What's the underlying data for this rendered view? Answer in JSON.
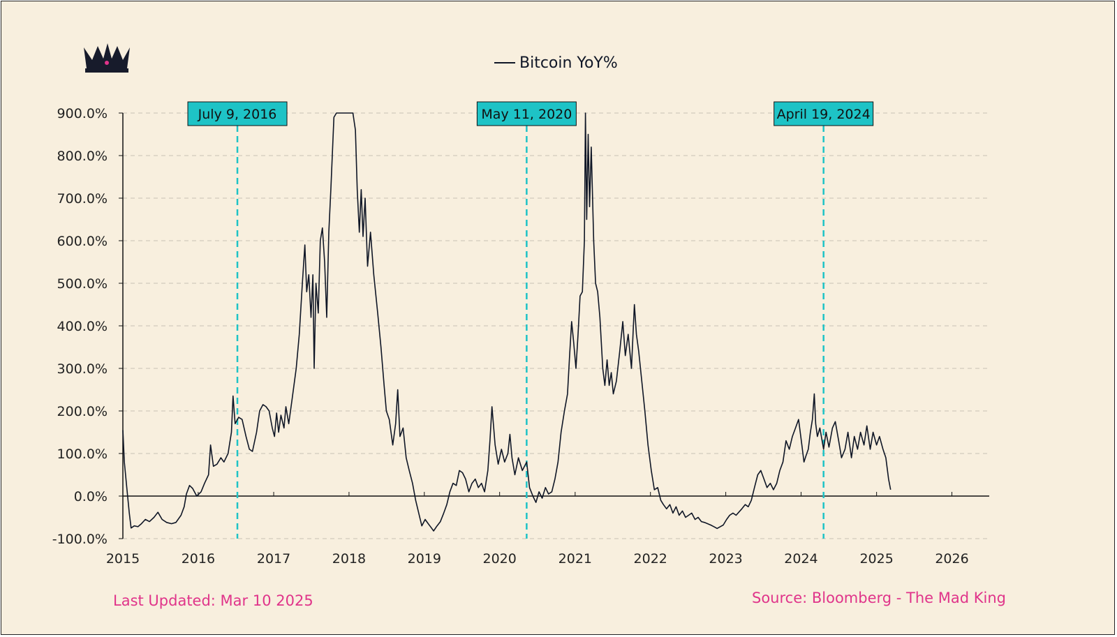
{
  "colors": {
    "background": "#f8efde",
    "line": "#0f1626",
    "marker": "#1ec3c6",
    "marker_label_bg": "#1ec3c6",
    "footer_text": "#e0348a",
    "grid": "#c9c2b4",
    "logo": "#171b2b",
    "logo_gem": "#e0348a"
  },
  "logo": {
    "icon": "crown-icon"
  },
  "footer": {
    "last_updated": "Last Updated: Mar 10 2025",
    "source": "Source: Bloomberg - The Mad King"
  },
  "chart_data": {
    "type": "line",
    "title": "",
    "xlabel": "",
    "ylabel": "",
    "legend": {
      "position": "top-center",
      "entries": [
        "Bitcoin YoY%"
      ]
    },
    "grid": {
      "horizontal": true,
      "style": "dashed"
    },
    "xlim": [
      "2015-01-01",
      "2026-07-01"
    ],
    "ylim": [
      -100,
      900
    ],
    "x_ticks": [
      "2015",
      "2016",
      "2017",
      "2018",
      "2019",
      "2020",
      "2021",
      "2022",
      "2023",
      "2024",
      "2025",
      "2026"
    ],
    "y_ticks": [
      "-100.0%",
      "0.0%",
      "100.0%",
      "200.0%",
      "300.0%",
      "400.0%",
      "500.0%",
      "600.0%",
      "700.0%",
      "800.0%",
      "900.0%"
    ],
    "y_tick_values": [
      -100,
      0,
      100,
      200,
      300,
      400,
      500,
      600,
      700,
      800,
      900
    ],
    "markers": [
      {
        "date": "2016-07-09",
        "label": "July 9, 2016"
      },
      {
        "date": "2020-05-11",
        "label": "May 11, 2020"
      },
      {
        "date": "2024-04-19",
        "label": "April 19, 2024"
      }
    ],
    "series": [
      {
        "name": "Bitcoin YoY%",
        "points": [
          [
            "2015-01-01",
            155
          ],
          [
            "2015-01-08",
            80
          ],
          [
            "2015-01-20",
            20
          ],
          [
            "2015-02-01",
            -40
          ],
          [
            "2015-02-10",
            -75
          ],
          [
            "2015-02-25",
            -70
          ],
          [
            "2015-03-15",
            -72
          ],
          [
            "2015-04-01",
            -65
          ],
          [
            "2015-04-20",
            -55
          ],
          [
            "2015-05-10",
            -60
          ],
          [
            "2015-06-01",
            -50
          ],
          [
            "2015-06-20",
            -38
          ],
          [
            "2015-07-10",
            -55
          ],
          [
            "2015-08-01",
            -62
          ],
          [
            "2015-08-25",
            -65
          ],
          [
            "2015-09-15",
            -62
          ],
          [
            "2015-10-10",
            -45
          ],
          [
            "2015-10-25",
            -25
          ],
          [
            "2015-11-05",
            5
          ],
          [
            "2015-11-20",
            25
          ],
          [
            "2015-12-05",
            18
          ],
          [
            "2015-12-25",
            0
          ],
          [
            "2016-01-15",
            10
          ],
          [
            "2016-02-01",
            30
          ],
          [
            "2016-02-20",
            50
          ],
          [
            "2016-03-01",
            120
          ],
          [
            "2016-03-15",
            70
          ],
          [
            "2016-04-01",
            75
          ],
          [
            "2016-04-20",
            90
          ],
          [
            "2016-05-05",
            80
          ],
          [
            "2016-05-25",
            100
          ],
          [
            "2016-06-10",
            150
          ],
          [
            "2016-06-18",
            235
          ],
          [
            "2016-06-28",
            170
          ],
          [
            "2016-07-15",
            185
          ],
          [
            "2016-08-01",
            180
          ],
          [
            "2016-08-20",
            140
          ],
          [
            "2016-09-05",
            110
          ],
          [
            "2016-09-20",
            105
          ],
          [
            "2016-10-10",
            150
          ],
          [
            "2016-10-25",
            200
          ],
          [
            "2016-11-10",
            215
          ],
          [
            "2016-11-25",
            210
          ],
          [
            "2016-12-10",
            200
          ],
          [
            "2016-12-25",
            160
          ],
          [
            "2017-01-05",
            140
          ],
          [
            "2017-01-15",
            195
          ],
          [
            "2017-01-25",
            150
          ],
          [
            "2017-02-05",
            190
          ],
          [
            "2017-02-20",
            160
          ],
          [
            "2017-03-01",
            210
          ],
          [
            "2017-03-15",
            170
          ],
          [
            "2017-04-01",
            230
          ],
          [
            "2017-04-20",
            300
          ],
          [
            "2017-05-05",
            380
          ],
          [
            "2017-05-20",
            500
          ],
          [
            "2017-06-01",
            590
          ],
          [
            "2017-06-10",
            480
          ],
          [
            "2017-06-20",
            520
          ],
          [
            "2017-07-01",
            420
          ],
          [
            "2017-07-10",
            520
          ],
          [
            "2017-07-16",
            300
          ],
          [
            "2017-07-25",
            500
          ],
          [
            "2017-08-05",
            430
          ],
          [
            "2017-08-15",
            600
          ],
          [
            "2017-08-25",
            630
          ],
          [
            "2017-09-05",
            550
          ],
          [
            "2017-09-15",
            420
          ],
          [
            "2017-09-25",
            620
          ],
          [
            "2017-10-05",
            720
          ],
          [
            "2017-10-20",
            890
          ],
          [
            "2017-11-01",
            900
          ],
          [
            "2017-11-20",
            900
          ],
          [
            "2017-12-15",
            900
          ],
          [
            "2018-01-05",
            900
          ],
          [
            "2018-01-20",
            900
          ],
          [
            "2018-02-01",
            860
          ],
          [
            "2018-02-10",
            720
          ],
          [
            "2018-02-20",
            620
          ],
          [
            "2018-03-01",
            720
          ],
          [
            "2018-03-10",
            610
          ],
          [
            "2018-03-20",
            700
          ],
          [
            "2018-04-01",
            540
          ],
          [
            "2018-04-15",
            620
          ],
          [
            "2018-05-01",
            520
          ],
          [
            "2018-05-20",
            430
          ],
          [
            "2018-06-05",
            350
          ],
          [
            "2018-06-20",
            260
          ],
          [
            "2018-07-01",
            200
          ],
          [
            "2018-07-15",
            180
          ],
          [
            "2018-08-01",
            120
          ],
          [
            "2018-08-15",
            170
          ],
          [
            "2018-08-25",
            250
          ],
          [
            "2018-09-05",
            140
          ],
          [
            "2018-09-20",
            160
          ],
          [
            "2018-10-05",
            90
          ],
          [
            "2018-10-20",
            60
          ],
          [
            "2018-11-05",
            30
          ],
          [
            "2018-11-20",
            -10
          ],
          [
            "2018-12-05",
            -40
          ],
          [
            "2018-12-20",
            -70
          ],
          [
            "2019-01-05",
            -55
          ],
          [
            "2019-01-20",
            -65
          ],
          [
            "2019-02-05",
            -75
          ],
          [
            "2019-02-15",
            -82
          ],
          [
            "2019-03-01",
            -72
          ],
          [
            "2019-03-20",
            -60
          ],
          [
            "2019-04-05",
            -40
          ],
          [
            "2019-04-20",
            -20
          ],
          [
            "2019-05-05",
            10
          ],
          [
            "2019-05-20",
            30
          ],
          [
            "2019-06-05",
            25
          ],
          [
            "2019-06-20",
            60
          ],
          [
            "2019-07-05",
            55
          ],
          [
            "2019-07-20",
            40
          ],
          [
            "2019-08-05",
            10
          ],
          [
            "2019-08-20",
            30
          ],
          [
            "2019-09-05",
            40
          ],
          [
            "2019-09-20",
            20
          ],
          [
            "2019-10-05",
            30
          ],
          [
            "2019-10-20",
            10
          ],
          [
            "2019-11-05",
            60
          ],
          [
            "2019-11-15",
            130
          ],
          [
            "2019-11-25",
            210
          ],
          [
            "2019-12-10",
            120
          ],
          [
            "2019-12-25",
            75
          ],
          [
            "2020-01-10",
            110
          ],
          [
            "2020-01-25",
            80
          ],
          [
            "2020-02-10",
            100
          ],
          [
            "2020-02-20",
            145
          ],
          [
            "2020-03-01",
            90
          ],
          [
            "2020-03-15",
            50
          ],
          [
            "2020-04-01",
            90
          ],
          [
            "2020-04-20",
            60
          ],
          [
            "2020-05-11",
            80
          ],
          [
            "2020-05-25",
            20
          ],
          [
            "2020-06-10",
            0
          ],
          [
            "2020-06-25",
            -15
          ],
          [
            "2020-07-10",
            10
          ],
          [
            "2020-07-25",
            -5
          ],
          [
            "2020-08-10",
            20
          ],
          [
            "2020-08-25",
            5
          ],
          [
            "2020-09-10",
            10
          ],
          [
            "2020-09-25",
            40
          ],
          [
            "2020-10-10",
            80
          ],
          [
            "2020-10-25",
            150
          ],
          [
            "2020-11-10",
            200
          ],
          [
            "2020-11-25",
            240
          ],
          [
            "2020-12-05",
            330
          ],
          [
            "2020-12-15",
            410
          ],
          [
            "2020-12-25",
            360
          ],
          [
            "2021-01-05",
            300
          ],
          [
            "2021-01-15",
            380
          ],
          [
            "2021-01-25",
            470
          ],
          [
            "2021-02-05",
            480
          ],
          [
            "2021-02-15",
            600
          ],
          [
            "2021-02-20",
            900
          ],
          [
            "2021-02-26",
            650
          ],
          [
            "2021-03-05",
            850
          ],
          [
            "2021-03-12",
            680
          ],
          [
            "2021-03-20",
            820
          ],
          [
            "2021-04-01",
            600
          ],
          [
            "2021-04-10",
            500
          ],
          [
            "2021-04-20",
            480
          ],
          [
            "2021-05-01",
            420
          ],
          [
            "2021-05-15",
            300
          ],
          [
            "2021-05-25",
            260
          ],
          [
            "2021-06-05",
            320
          ],
          [
            "2021-06-15",
            260
          ],
          [
            "2021-06-25",
            290
          ],
          [
            "2021-07-05",
            240
          ],
          [
            "2021-07-20",
            270
          ],
          [
            "2021-08-05",
            340
          ],
          [
            "2021-08-20",
            410
          ],
          [
            "2021-09-01",
            330
          ],
          [
            "2021-09-15",
            380
          ],
          [
            "2021-10-01",
            300
          ],
          [
            "2021-10-15",
            450
          ],
          [
            "2021-10-25",
            380
          ],
          [
            "2021-11-05",
            340
          ],
          [
            "2021-11-20",
            270
          ],
          [
            "2021-12-05",
            200
          ],
          [
            "2021-12-20",
            120
          ],
          [
            "2022-01-05",
            60
          ],
          [
            "2022-01-20",
            15
          ],
          [
            "2022-02-05",
            20
          ],
          [
            "2022-02-20",
            -10
          ],
          [
            "2022-03-05",
            -20
          ],
          [
            "2022-03-20",
            -30
          ],
          [
            "2022-04-05",
            -20
          ],
          [
            "2022-04-20",
            -40
          ],
          [
            "2022-05-05",
            -25
          ],
          [
            "2022-05-20",
            -45
          ],
          [
            "2022-06-05",
            -35
          ],
          [
            "2022-06-20",
            -50
          ],
          [
            "2022-07-05",
            -45
          ],
          [
            "2022-07-20",
            -40
          ],
          [
            "2022-08-05",
            -55
          ],
          [
            "2022-08-20",
            -50
          ],
          [
            "2022-09-05",
            -60
          ],
          [
            "2022-09-20",
            -62
          ],
          [
            "2022-10-05",
            -65
          ],
          [
            "2022-10-20",
            -68
          ],
          [
            "2022-11-05",
            -72
          ],
          [
            "2022-11-20",
            -76
          ],
          [
            "2022-12-05",
            -72
          ],
          [
            "2022-12-20",
            -68
          ],
          [
            "2023-01-05",
            -55
          ],
          [
            "2023-01-20",
            -45
          ],
          [
            "2023-02-05",
            -40
          ],
          [
            "2023-02-20",
            -45
          ],
          [
            "2023-03-05",
            -38
          ],
          [
            "2023-03-20",
            -30
          ],
          [
            "2023-04-05",
            -20
          ],
          [
            "2023-04-20",
            -25
          ],
          [
            "2023-05-05",
            -10
          ],
          [
            "2023-05-20",
            20
          ],
          [
            "2023-06-05",
            50
          ],
          [
            "2023-06-20",
            60
          ],
          [
            "2023-07-05",
            40
          ],
          [
            "2023-07-20",
            20
          ],
          [
            "2023-08-05",
            30
          ],
          [
            "2023-08-20",
            15
          ],
          [
            "2023-09-05",
            30
          ],
          [
            "2023-09-20",
            60
          ],
          [
            "2023-10-05",
            80
          ],
          [
            "2023-10-20",
            130
          ],
          [
            "2023-11-05",
            110
          ],
          [
            "2023-11-20",
            140
          ],
          [
            "2023-12-05",
            160
          ],
          [
            "2023-12-20",
            180
          ],
          [
            "2024-01-05",
            120
          ],
          [
            "2024-01-15",
            80
          ],
          [
            "2024-01-25",
            95
          ],
          [
            "2024-02-05",
            110
          ],
          [
            "2024-02-15",
            150
          ],
          [
            "2024-02-25",
            180
          ],
          [
            "2024-03-05",
            240
          ],
          [
            "2024-03-12",
            170
          ],
          [
            "2024-03-20",
            140
          ],
          [
            "2024-04-01",
            160
          ],
          [
            "2024-04-19",
            110
          ],
          [
            "2024-05-01",
            150
          ],
          [
            "2024-05-15",
            115
          ],
          [
            "2024-06-01",
            160
          ],
          [
            "2024-06-15",
            175
          ],
          [
            "2024-07-01",
            130
          ],
          [
            "2024-07-15",
            90
          ],
          [
            "2024-08-01",
            110
          ],
          [
            "2024-08-15",
            150
          ],
          [
            "2024-09-01",
            90
          ],
          [
            "2024-09-15",
            140
          ],
          [
            "2024-10-01",
            110
          ],
          [
            "2024-10-15",
            150
          ],
          [
            "2024-11-01",
            120
          ],
          [
            "2024-11-15",
            165
          ],
          [
            "2024-12-01",
            110
          ],
          [
            "2024-12-15",
            150
          ],
          [
            "2025-01-01",
            120
          ],
          [
            "2025-01-15",
            140
          ],
          [
            "2025-02-01",
            110
          ],
          [
            "2025-02-15",
            90
          ],
          [
            "2025-02-28",
            40
          ],
          [
            "2025-03-10",
            15
          ]
        ]
      }
    ]
  }
}
